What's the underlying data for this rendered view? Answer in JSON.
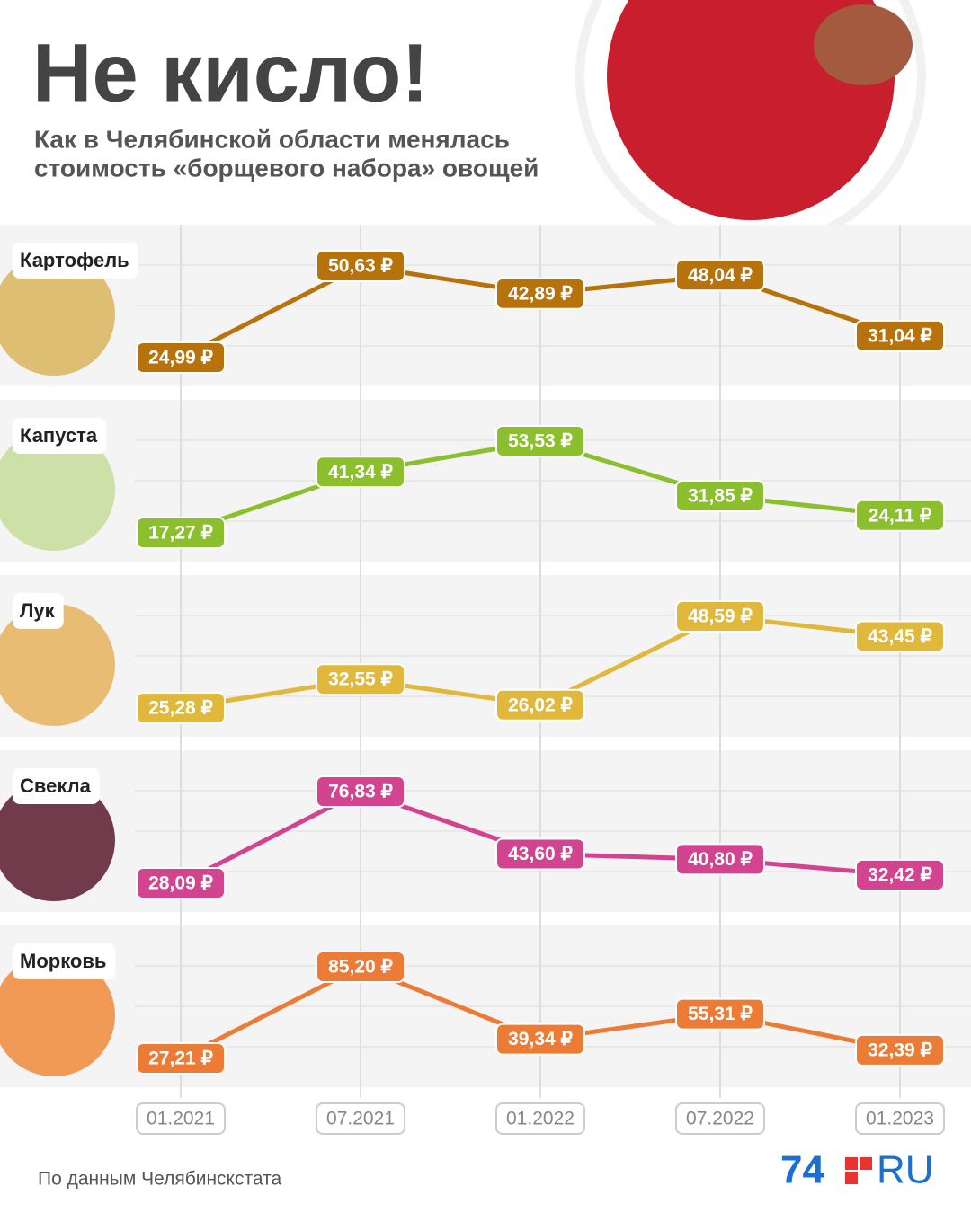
{
  "header": {
    "title": "Не кисло!",
    "subtitle": [
      "Как в Челябинской области менялась",
      "стоимость «борщевого набора» овощей"
    ]
  },
  "chart_data": {
    "type": "line",
    "categories": [
      "01.2021",
      "07.2021",
      "01.2022",
      "07.2022",
      "01.2023"
    ],
    "series": [
      {
        "name": "Картофель",
        "color": "#b8720c",
        "values": [
          24.99,
          50.63,
          42.89,
          48.04,
          31.04
        ],
        "value_labels": [
          "24,99 ₽",
          "50,63 ₽",
          "42,89 ₽",
          "48,04 ₽",
          "31,04 ₽"
        ]
      },
      {
        "name": "Капуста",
        "color": "#8cbf2e",
        "values": [
          17.27,
          41.34,
          53.53,
          31.85,
          24.11
        ],
        "value_labels": [
          "17,27 ₽",
          "41,34 ₽",
          "53,53 ₽",
          "31,85 ₽",
          "24,11 ₽"
        ]
      },
      {
        "name": "Лук",
        "color": "#e0b83c",
        "values": [
          25.28,
          32.55,
          26.02,
          48.59,
          43.45
        ],
        "value_labels": [
          "25,28 ₽",
          "32,55 ₽",
          "26,02 ₽",
          "48,59 ₽",
          "43,45 ₽"
        ]
      },
      {
        "name": "Свекла",
        "color": "#d2448f",
        "values": [
          28.09,
          76.83,
          43.6,
          40.8,
          32.42
        ],
        "value_labels": [
          "28,09 ₽",
          "76,83 ₽",
          "43,60 ₽",
          "40,80 ₽",
          "32,42 ₽"
        ]
      },
      {
        "name": "Морковь",
        "color": "#ec7b36",
        "values": [
          27.21,
          85.2,
          39.34,
          55.31,
          32.39
        ],
        "value_labels": [
          "27,21 ₽",
          "85,20 ₽",
          "39,34 ₽",
          "55,31 ₽",
          "32,39 ₽"
        ]
      }
    ]
  },
  "footer": {
    "source": "По данным Челябинскстата",
    "logo": [
      "74",
      "RU"
    ]
  }
}
